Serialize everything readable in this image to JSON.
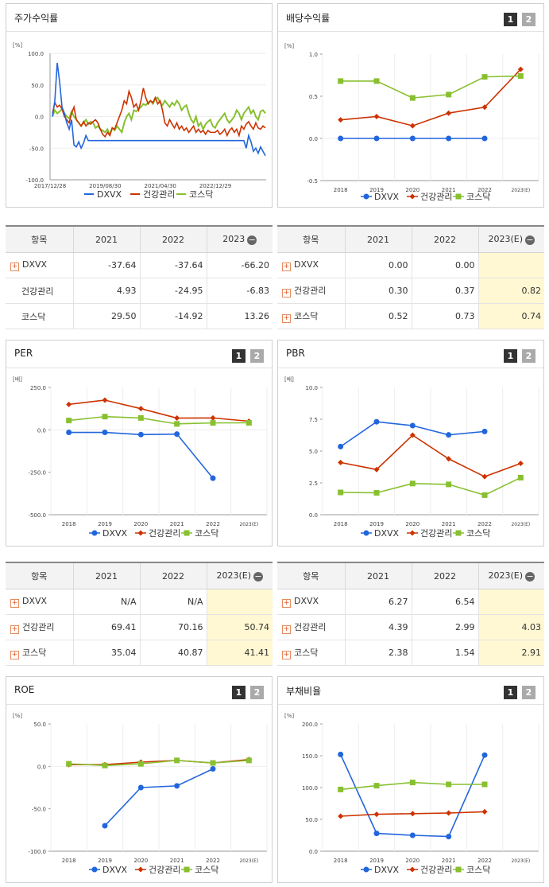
{
  "colors": {
    "dxvx": "#2266dd",
    "health": "#cc3300",
    "kosdaq": "#88c030"
  },
  "buttons": [
    "1",
    "2"
  ],
  "stock": {
    "title": "주가수익률",
    "unit": "[%]",
    "series_names": [
      "DXVX",
      "건강관리",
      "코스닥"
    ]
  },
  "dividend": {
    "title": "배당수익률"
  },
  "per": {
    "title": "PER"
  },
  "pbr": {
    "title": "PBR"
  },
  "roe": {
    "title": "ROE"
  },
  "debt": {
    "title": "부채비율"
  },
  "tables": {
    "stock": {
      "headers": [
        "항목",
        "2021",
        "2022",
        "2023"
      ],
      "rows": [
        {
          "name": "DXVX",
          "plus": true,
          "v": [
            "-37.64",
            "-37.64",
            "-66.20"
          ]
        },
        {
          "name": "건강관리",
          "plus": false,
          "v": [
            "4.93",
            "-24.95",
            "-6.83"
          ]
        },
        {
          "name": "코스닥",
          "plus": false,
          "v": [
            "29.50",
            "-14.92",
            "13.26"
          ]
        }
      ]
    },
    "dividend": {
      "headers": [
        "항목",
        "2021",
        "2022",
        "2023(E)"
      ],
      "rows": [
        {
          "name": "DXVX",
          "plus": true,
          "v": [
            "0.00",
            "0.00",
            ""
          ]
        },
        {
          "name": "건강관리",
          "plus": true,
          "v": [
            "0.30",
            "0.37",
            "0.82"
          ]
        },
        {
          "name": "코스닥",
          "plus": true,
          "v": [
            "0.52",
            "0.73",
            "0.74"
          ]
        }
      ]
    },
    "per": {
      "headers": [
        "항목",
        "2021",
        "2022",
        "2023(E)"
      ],
      "rows": [
        {
          "name": "DXVX",
          "plus": true,
          "v": [
            "N/A",
            "N/A",
            ""
          ]
        },
        {
          "name": "건강관리",
          "plus": true,
          "v": [
            "69.41",
            "70.16",
            "50.74"
          ]
        },
        {
          "name": "코스닥",
          "plus": true,
          "v": [
            "35.04",
            "40.87",
            "41.41"
          ]
        }
      ]
    },
    "pbr": {
      "headers": [
        "항목",
        "2021",
        "2022",
        "2023(E)"
      ],
      "rows": [
        {
          "name": "DXVX",
          "plus": true,
          "v": [
            "6.27",
            "6.54",
            ""
          ]
        },
        {
          "name": "건강관리",
          "plus": true,
          "v": [
            "4.39",
            "2.99",
            "4.03"
          ]
        },
        {
          "name": "코스닥",
          "plus": true,
          "v": [
            "2.38",
            "1.54",
            "2.91"
          ]
        }
      ]
    }
  },
  "chart_data": [
    {
      "id": "stock",
      "type": "line",
      "unit": "[%]",
      "ylim": [
        -100,
        100
      ],
      "yticks": [
        "100.0",
        "50.0",
        "0.0",
        "-50.0",
        "-100.0"
      ],
      "xticks": [
        "2017/12/28",
        "2019/08/30",
        "2021/04/30",
        "2022/12/29"
      ],
      "series": [
        {
          "name": "DXVX",
          "values": [
            0,
            25,
            85,
            55,
            15,
            5,
            -10,
            -20,
            -5,
            -45,
            -48,
            -40,
            -50,
            -42,
            -30,
            -38,
            -38,
            -38,
            -38,
            -38,
            -38,
            -38,
            -38,
            -38,
            -38,
            -38,
            -38,
            -38,
            -38,
            -38,
            -38,
            -38,
            -38,
            -38,
            -38,
            -38,
            -38,
            -38,
            -38,
            -38,
            -38,
            -38,
            -38,
            -38,
            -38,
            -38,
            -38,
            -38,
            -38,
            -38,
            -38,
            -38,
            -38,
            -38,
            -38,
            -38,
            -38,
            -38,
            -38,
            -38,
            -38,
            -38,
            -38,
            -38,
            -38,
            -38,
            -38,
            -38,
            -38,
            -38,
            -38,
            -38,
            -38,
            -38,
            -38,
            -38,
            -38,
            -38,
            -38,
            -38,
            -38,
            -50,
            -30,
            -40,
            -55,
            -50,
            -58,
            -48,
            -55,
            -62
          ]
        },
        {
          "name": "건강관리",
          "values": [
            5,
            22,
            15,
            18,
            12,
            0,
            -5,
            -10,
            5,
            15,
            -5,
            -10,
            -15,
            -8,
            -15,
            -10,
            -12,
            -8,
            -5,
            -10,
            -20,
            -28,
            -32,
            -25,
            -30,
            -18,
            -20,
            -10,
            0,
            10,
            25,
            20,
            40,
            30,
            15,
            20,
            10,
            25,
            45,
            30,
            20,
            25,
            22,
            30,
            20,
            25,
            10,
            -10,
            -15,
            -5,
            -12,
            -18,
            -10,
            -20,
            -15,
            -22,
            -18,
            -25,
            -20,
            -15,
            -25,
            -20,
            -25,
            -22,
            -28,
            -22,
            -25,
            -25,
            -25,
            -22,
            -28,
            -25,
            -20,
            -30,
            -22,
            -18,
            -25,
            -20,
            -30,
            -15,
            -20,
            -12,
            -8,
            -15,
            -20,
            -10,
            -18,
            -20,
            -15,
            -18
          ]
        },
        {
          "name": "코스닥",
          "values": [
            0,
            10,
            5,
            8,
            12,
            5,
            0,
            -3,
            8,
            0,
            -5,
            -10,
            -15,
            -10,
            -5,
            -12,
            -8,
            -10,
            -18,
            -15,
            -20,
            -22,
            -25,
            -20,
            -28,
            -18,
            -22,
            -15,
            -20,
            -25,
            -10,
            0,
            5,
            -5,
            10,
            8,
            12,
            15,
            20,
            18,
            22,
            25,
            20,
            28,
            30,
            22,
            18,
            25,
            20,
            15,
            22,
            18,
            25,
            20,
            10,
            15,
            18,
            5,
            -5,
            -10,
            0,
            -15,
            -10,
            -20,
            -12,
            -8,
            -5,
            -15,
            -18,
            -10,
            -5,
            0,
            5,
            -5,
            -10,
            -5,
            0,
            10,
            5,
            -5,
            5,
            10,
            15,
            5,
            10,
            0,
            -5,
            8,
            10,
            5
          ]
        }
      ]
    },
    {
      "id": "dividend",
      "type": "line",
      "unit": "[%]",
      "ylim": [
        -0.5,
        1.0
      ],
      "yticks": [
        "1.0",
        "0.5",
        "0.0",
        "-0.5"
      ],
      "categories": [
        "2018",
        "2019",
        "2020",
        "2021",
        "2022",
        "2023(E)"
      ],
      "series": [
        {
          "name": "DXVX",
          "values": [
            0,
            0,
            0,
            0,
            0,
            null
          ]
        },
        {
          "name": "건강관리",
          "values": [
            0.22,
            0.26,
            0.15,
            0.3,
            0.37,
            0.82
          ]
        },
        {
          "name": "코스닥",
          "values": [
            0.68,
            0.68,
            0.48,
            0.52,
            0.73,
            0.74
          ]
        }
      ]
    },
    {
      "id": "per",
      "type": "line",
      "unit": "[배]",
      "ylim": [
        -500,
        250
      ],
      "yticks": [
        "250.0",
        "0.0",
        "-250.0",
        "-500.0"
      ],
      "categories": [
        "2018",
        "2019",
        "2020",
        "2021",
        "2022",
        "2023(E)"
      ],
      "series": [
        {
          "name": "DXVX",
          "values": [
            -15,
            -15,
            -28,
            -25,
            -285,
            null
          ]
        },
        {
          "name": "건강관리",
          "values": [
            150,
            175,
            125,
            69.41,
            70.16,
            50.74
          ]
        },
        {
          "name": "코스닥",
          "values": [
            55,
            78,
            70,
            35.04,
            40.87,
            41.41
          ]
        }
      ]
    },
    {
      "id": "pbr",
      "type": "line",
      "unit": "[배]",
      "ylim": [
        0,
        10
      ],
      "yticks": [
        "10.0",
        "7.5",
        "5.0",
        "2.5",
        "0.0"
      ],
      "categories": [
        "2018",
        "2019",
        "2020",
        "2021",
        "2022",
        "2023(E)"
      ],
      "series": [
        {
          "name": "DXVX",
          "values": [
            5.35,
            7.3,
            7.0,
            6.27,
            6.54,
            null
          ]
        },
        {
          "name": "건강관리",
          "values": [
            4.1,
            3.55,
            6.25,
            4.39,
            2.99,
            4.03
          ]
        },
        {
          "name": "코스닥",
          "values": [
            1.75,
            1.72,
            2.45,
            2.38,
            1.54,
            2.91
          ]
        }
      ]
    },
    {
      "id": "roe",
      "type": "line",
      "unit": "[%]",
      "ylim": [
        -100,
        50
      ],
      "yticks": [
        "50.0",
        "0.0",
        "-50.0",
        "-100.0"
      ],
      "categories": [
        "2018",
        "2019",
        "2020",
        "2021",
        "2022",
        "2023(E)"
      ],
      "series": [
        {
          "name": "DXVX",
          "values": [
            null,
            -70,
            -25,
            -23,
            -3,
            null
          ]
        },
        {
          "name": "건강관리",
          "values": [
            2,
            2,
            5,
            7,
            4,
            8
          ]
        },
        {
          "name": "코스닥",
          "values": [
            3,
            1,
            3,
            7,
            4,
            7
          ]
        }
      ]
    },
    {
      "id": "debt",
      "type": "line",
      "unit": "[%]",
      "ylim": [
        0,
        200
      ],
      "yticks": [
        "200.0",
        "150.0",
        "100.0",
        "50.0",
        "0.0"
      ],
      "categories": [
        "2018",
        "2019",
        "2020",
        "2021",
        "2022",
        "2023(E)"
      ],
      "series": [
        {
          "name": "DXVX",
          "values": [
            152,
            28,
            25,
            23,
            151,
            null
          ]
        },
        {
          "name": "건강관리",
          "values": [
            55,
            58,
            59,
            60,
            62,
            null
          ]
        },
        {
          "name": "코스닥",
          "values": [
            97,
            103,
            108,
            105,
            105,
            null
          ]
        }
      ]
    }
  ]
}
